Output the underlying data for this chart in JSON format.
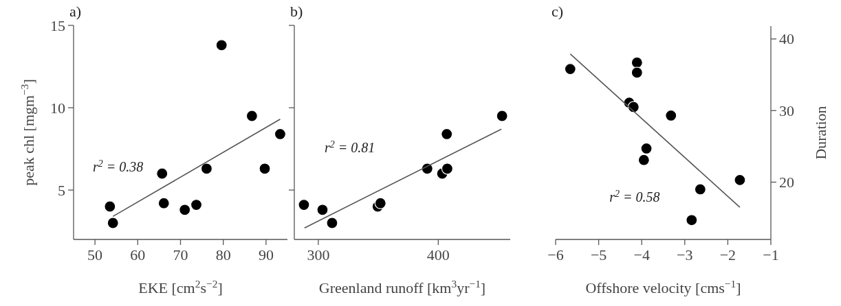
{
  "chart_data": [
    {
      "type": "scatter",
      "title": "a)",
      "xlabel": "EKE [cm$^{2}$s$^{−2}$]",
      "ylabel": "peak chl [mgm$^{−3}$]",
      "xlim": [
        45,
        95
      ],
      "xticks": [
        50,
        60,
        70,
        80,
        90
      ],
      "ylim": [
        2,
        15
      ],
      "yticks": [
        5,
        10,
        15
      ],
      "grid": false,
      "series": [
        {
          "marker": "circle",
          "color": "#000000",
          "x": [
            53.5,
            54.2,
            65.7,
            66.1,
            71.0,
            73.7,
            76.1,
            79.6,
            86.7,
            89.7,
            93.3
          ],
          "values": [
            4.0,
            3.0,
            6.0,
            4.2,
            3.8,
            4.1,
            6.3,
            13.8,
            9.5,
            6.3,
            8.4
          ]
        },
        {
          "type": "line",
          "color": "#555555",
          "x": [
            54.2,
            93.3
          ],
          "values": [
            3.4,
            9.3
          ]
        }
      ],
      "annotations": [
        "r$^{2}$ = 0.38"
      ]
    },
    {
      "type": "scatter",
      "title": "b)",
      "xlabel": "Greenland runoff [km$^{3}$yr$^{−1}$]",
      "xlim": [
        280,
        460
      ],
      "xticks": [
        300,
        400
      ],
      "ylim": [
        2,
        15
      ],
      "yticks": [
        5,
        10,
        15
      ],
      "tick_labels": "x",
      "grid": false,
      "series": [
        {
          "marker": "circle",
          "color": "#000000",
          "x": [
            288,
            303.5,
            311.5,
            349.5,
            351.8,
            390.8,
            403.3,
            407.5,
            407.1,
            453.2
          ],
          "values": [
            4.1,
            3.8,
            3.0,
            4.0,
            4.2,
            6.3,
            6.0,
            6.3,
            8.4,
            9.5
          ]
        },
        {
          "type": "line",
          "color": "#555555",
          "x": [
            288.5,
            452.6
          ],
          "values": [
            2.7,
            8.7
          ]
        }
      ],
      "annotations": [
        "r$^{2}$ = 0.81"
      ]
    },
    {
      "type": "scatter",
      "title": "c)",
      "xlabel": "Offshore velocity [cms$^{−1}$]",
      "y2label": "Duration",
      "xlim": [
        -6,
        -1
      ],
      "xticks": [
        -6,
        -5,
        -4,
        -3,
        -2,
        -1
      ],
      "y2lim": [
        12,
        41.8
      ],
      "y2ticks": [
        20,
        30,
        40
      ],
      "grid": false,
      "series": [
        {
          "marker": "circle",
          "axis": "y2",
          "color": "#000000",
          "x": [
            -5.66,
            -4.11,
            -4.11,
            -4.29,
            -4.19,
            -3.32,
            -3.89,
            -3.95,
            -2.64,
            -2.84,
            -1.72
          ],
          "values": [
            35.8,
            36.7,
            35.3,
            31.1,
            30.5,
            29.3,
            24.7,
            23.1,
            19.0,
            14.7,
            20.3
          ]
        },
        {
          "type": "line",
          "axis": "y2",
          "color": "#555555",
          "x": [
            -5.66,
            -1.72
          ],
          "values": [
            37.9,
            16.5
          ]
        }
      ],
      "annotations": [
        "r$^{2}$ = 0.58"
      ]
    }
  ]
}
